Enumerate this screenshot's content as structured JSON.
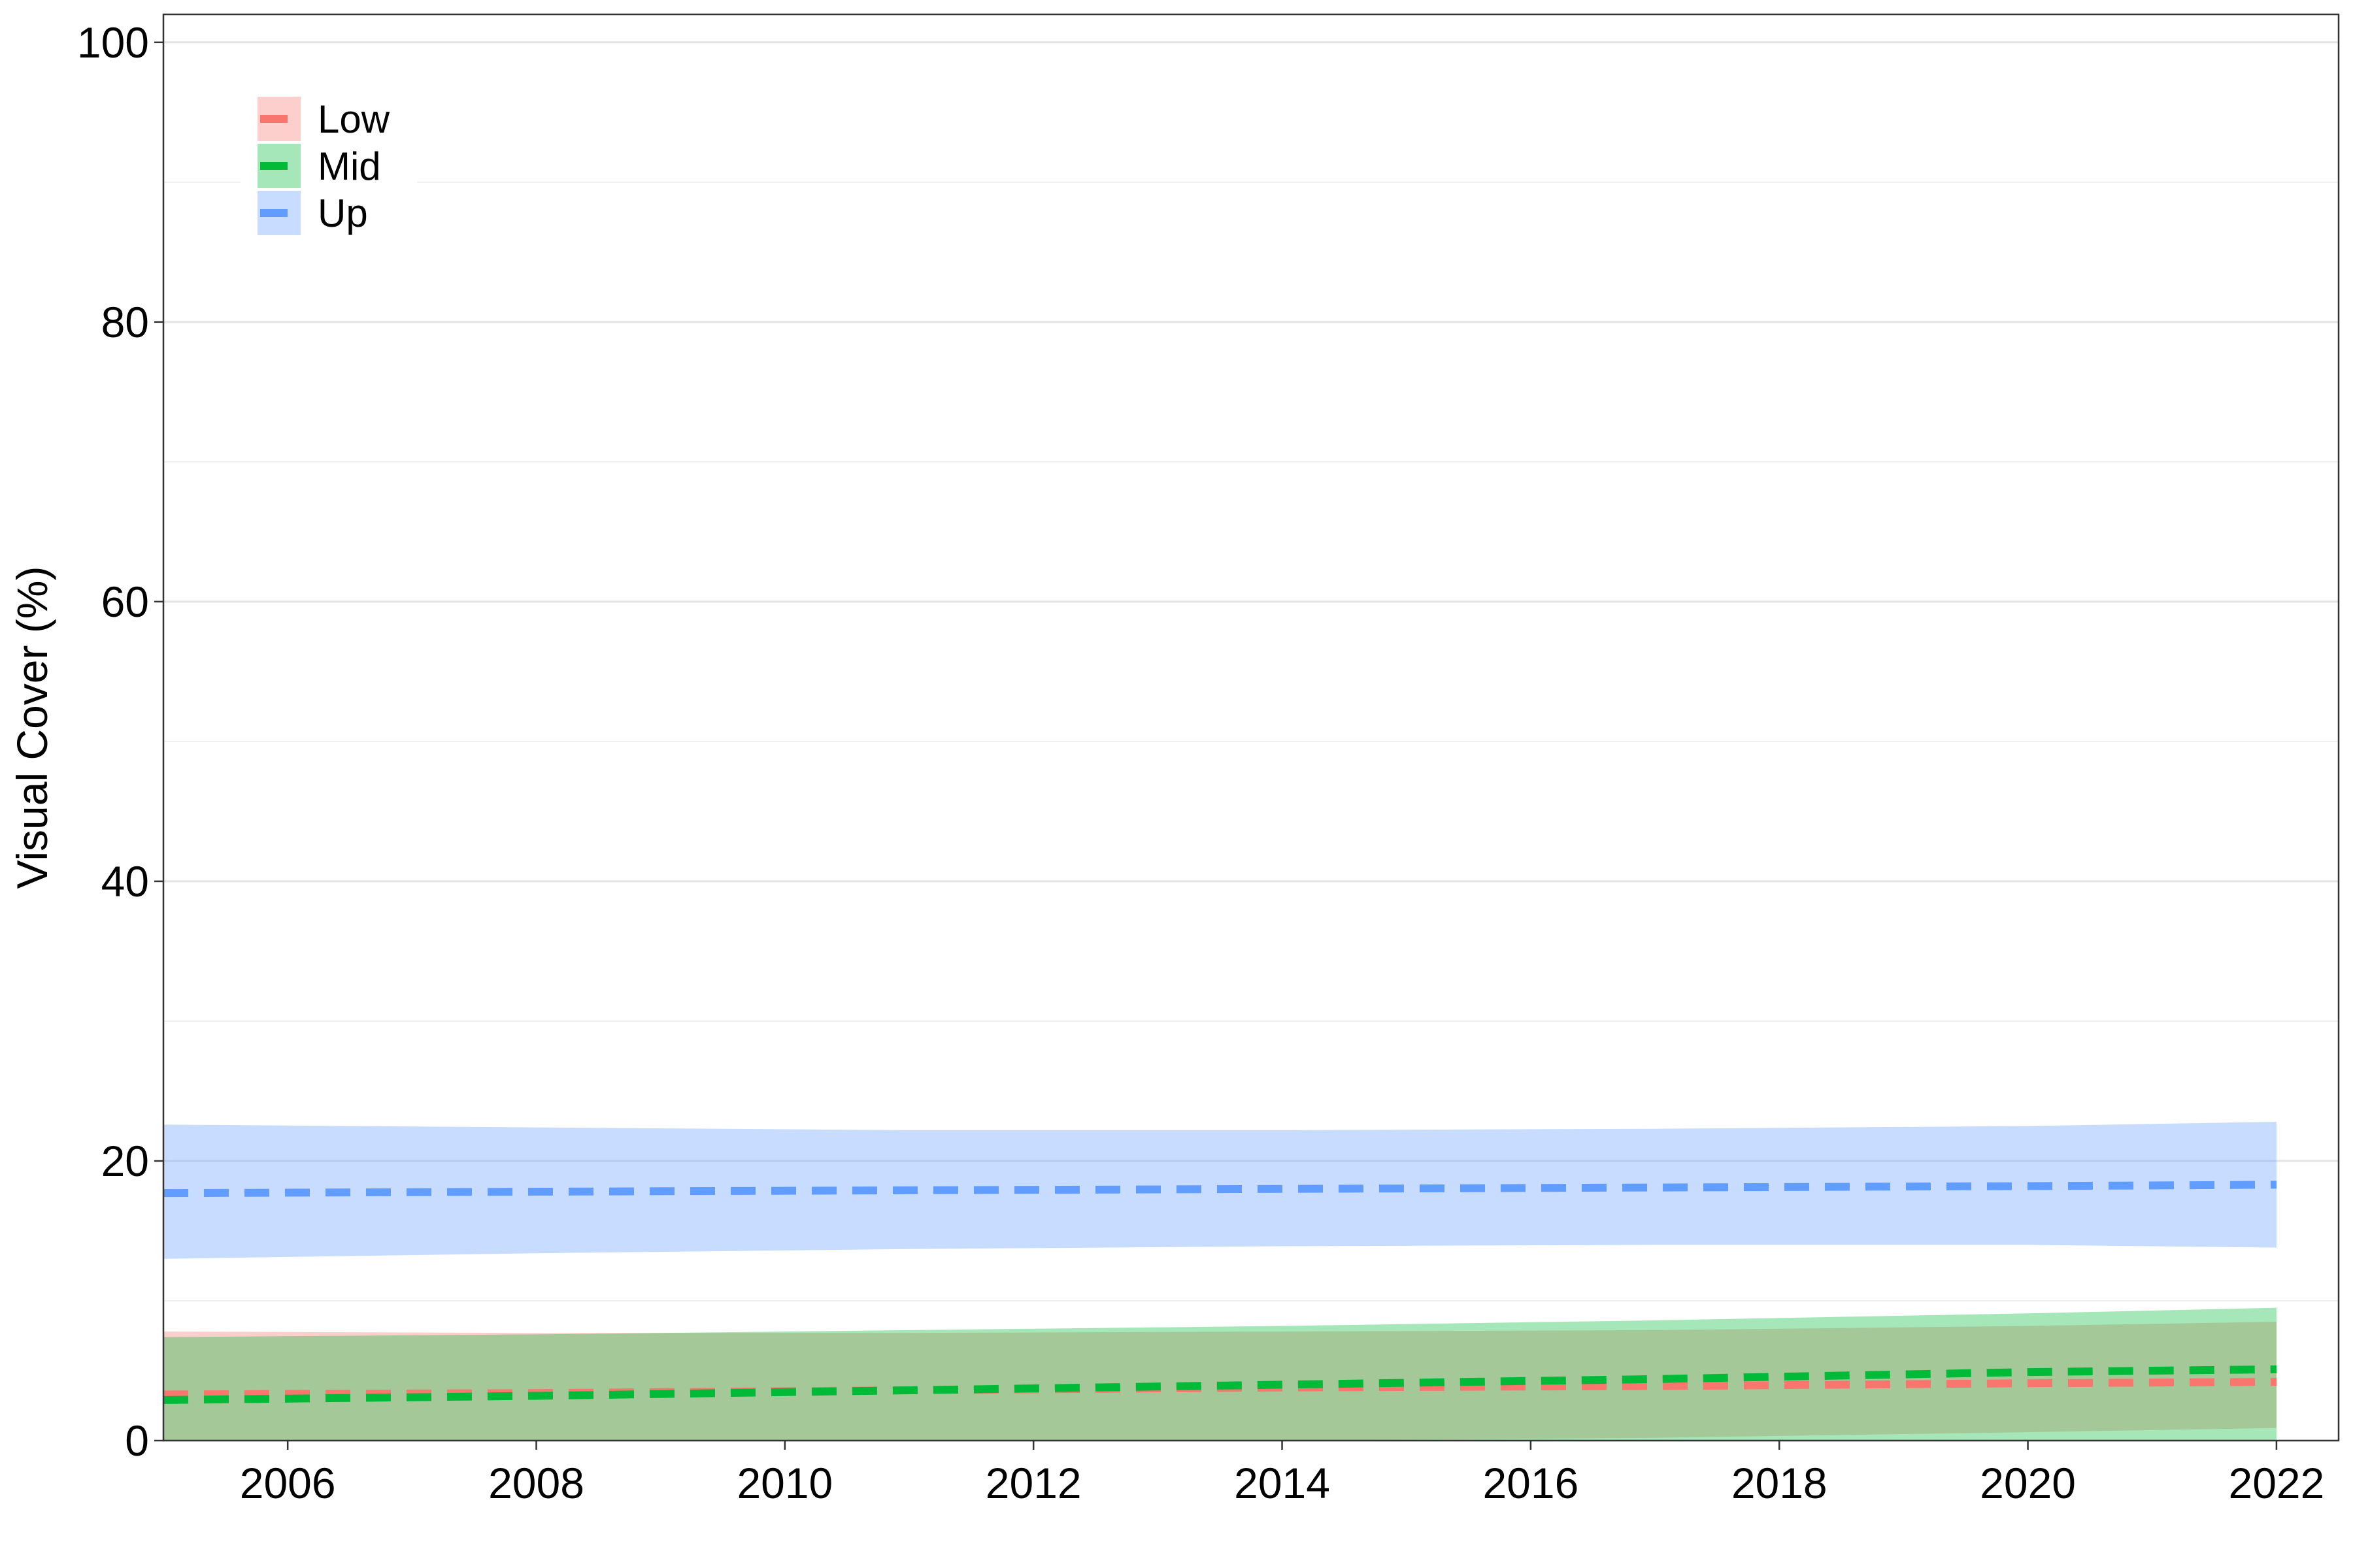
{
  "chart_data": {
    "type": "line",
    "title": "",
    "xlabel": "",
    "ylabel": "Visual Cover (%)",
    "xlim": [
      2005,
      2022.5
    ],
    "ylim": [
      0,
      102
    ],
    "x_ticks": [
      2006,
      2008,
      2010,
      2012,
      2014,
      2016,
      2018,
      2020,
      2022
    ],
    "y_ticks": [
      0,
      20,
      40,
      60,
      80,
      100
    ],
    "grid": true,
    "legend_position": "top-left",
    "line_style": "dashed",
    "series": [
      {
        "name": "Low",
        "color": "#F8766D",
        "band_color": "#F8766D",
        "x": [
          2005,
          2008,
          2011,
          2014,
          2017,
          2020,
          2022
        ],
        "values": [
          3.3,
          3.4,
          3.6,
          3.8,
          3.9,
          4.1,
          4.2
        ],
        "lower": [
          0.0,
          0.0,
          0.0,
          0.0,
          0.2,
          0.6,
          0.9
        ],
        "upper": [
          7.8,
          7.7,
          7.7,
          7.8,
          7.9,
          8.2,
          8.5
        ]
      },
      {
        "name": "Mid",
        "color": "#00BA38",
        "band_color": "#00BA38",
        "x": [
          2005,
          2008,
          2011,
          2014,
          2017,
          2020,
          2022
        ],
        "values": [
          2.9,
          3.2,
          3.6,
          4.0,
          4.4,
          4.9,
          5.1
        ],
        "lower": [
          0.0,
          0.0,
          0.0,
          0.0,
          0.0,
          0.0,
          0.0
        ],
        "upper": [
          7.4,
          7.6,
          7.9,
          8.2,
          8.6,
          9.1,
          9.5
        ]
      },
      {
        "name": "Up",
        "color": "#619CFF",
        "band_color": "#619CFF",
        "x": [
          2005,
          2008,
          2011,
          2014,
          2017,
          2020,
          2022
        ],
        "values": [
          17.7,
          17.8,
          17.9,
          18.0,
          18.1,
          18.2,
          18.3
        ],
        "lower": [
          13.0,
          13.4,
          13.7,
          13.9,
          14.0,
          14.0,
          13.8
        ],
        "upper": [
          22.6,
          22.4,
          22.2,
          22.2,
          22.3,
          22.5,
          22.8
        ]
      }
    ]
  }
}
